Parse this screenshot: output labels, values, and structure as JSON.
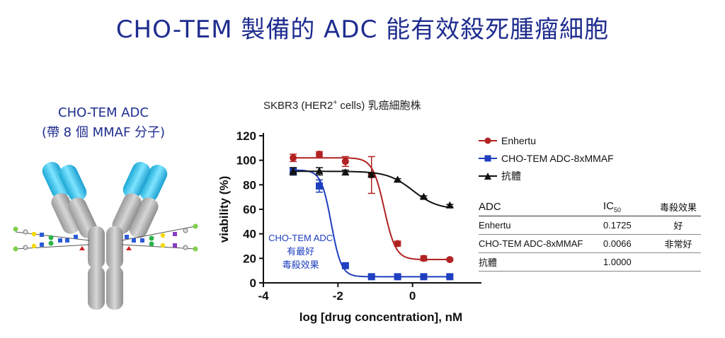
{
  "page": {
    "title": "CHO-TEM  製備的 ADC 能有效殺死腫瘤細胞"
  },
  "adc_caption": {
    "line1": "CHO-TEM ADC",
    "line2": "(帶 8 個 MMAF 分子)"
  },
  "chart_header": {
    "prefix": "SKBR3 (HER2",
    "sup": "+",
    "suffix": " cells) 乳癌細胞株"
  },
  "legend": [
    {
      "label": "Enhertu",
      "color": "#b22222",
      "marker": "circle"
    },
    {
      "label": "CHO-TEM ADC-8xMMAF",
      "color": "#1f3fbf",
      "marker": "square"
    },
    {
      "label": "抗體",
      "color": "#111111",
      "marker": "triangle"
    }
  ],
  "ic50_table": {
    "headers": {
      "adc": "ADC",
      "ic": "IC",
      "ic_sub": "50",
      "effect": "毒殺效果"
    },
    "rows": [
      {
        "name": "Enhertu",
        "value": "0.1725",
        "effect": "好"
      },
      {
        "name": "CHO-TEM ADC-8xMMAF",
        "value": "0.0066",
        "effect": "非常好"
      },
      {
        "name": "抗體",
        "value": "1.0000",
        "effect": ""
      }
    ]
  },
  "chart_data": {
    "type": "scatter",
    "xlabel": "log [drug concentration], nM",
    "ylabel": "viability (%)",
    "xlim": [
      -4,
      2
    ],
    "ylim": [
      0,
      120
    ],
    "xticks": [
      "-4",
      "-2",
      "0",
      "2"
    ],
    "yticks": [
      "0",
      "20",
      "40",
      "60",
      "80",
      "100",
      "120"
    ],
    "annotation": [
      "CHO-TEM ADC",
      "有最好",
      "毒殺效果"
    ],
    "series": [
      {
        "name": "Enhertu",
        "color": "#b22222",
        "marker": "circle",
        "x": [
          -3.2,
          -2.5,
          -1.8,
          -1.1,
          -0.4,
          0.3,
          1.0
        ],
        "y": [
          102,
          105,
          99,
          88,
          32,
          20,
          19
        ],
        "err": [
          3,
          2,
          4,
          15,
          2,
          2,
          1
        ],
        "fit": {
          "top": 102,
          "bottom": 19,
          "logec50": -0.76,
          "hill": 2.8
        }
      },
      {
        "name": "CHO-TEM ADC-8xMMAF",
        "color": "#1f3fbf",
        "marker": "square",
        "x": [
          -3.2,
          -2.5,
          -1.8,
          -1.1,
          -0.4,
          0.3,
          1.0
        ],
        "y": [
          91,
          79,
          14,
          5,
          5,
          5,
          5
        ],
        "err": [
          3,
          5,
          1,
          1,
          1,
          1,
          1
        ],
        "fit": {
          "top": 92,
          "bottom": 5,
          "logec50": -2.18,
          "hill": 3.2
        }
      },
      {
        "name": "抗體",
        "color": "#111111",
        "marker": "triangle",
        "x": [
          -3.2,
          -2.5,
          -1.8,
          -1.1,
          -0.4,
          0.3,
          1.0
        ],
        "y": [
          91,
          91,
          90,
          88,
          84,
          70,
          63
        ],
        "err": [
          3,
          3,
          2,
          1,
          1,
          1,
          1
        ],
        "fit": {
          "top": 91,
          "bottom": 60,
          "logec50": 0.0,
          "hill": 1.3
        }
      }
    ]
  }
}
